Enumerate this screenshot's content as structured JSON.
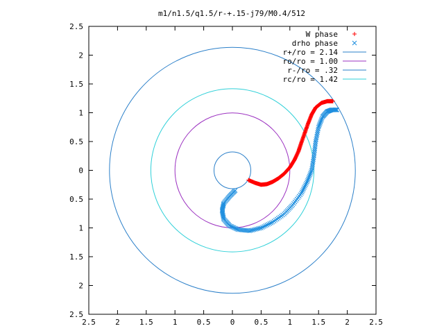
{
  "chart_data": {
    "type": "scatter",
    "title": "m1/n1.5/q1.5/r-+.15-j79/M0.4/512",
    "xlim": [
      -2.5,
      2.5
    ],
    "ylim": [
      -2.5,
      2.5
    ],
    "x_ticks": [
      -2.5,
      -2,
      -1.5,
      -1,
      -0.5,
      0,
      0.5,
      1,
      1.5,
      2,
      2.5
    ],
    "x_tick_labels": [
      "2.5",
      "2",
      "1.5",
      "1",
      "0.5",
      "0",
      "0.5",
      "1",
      "1.5",
      "2",
      "2.5"
    ],
    "y_ticks": [
      2.5,
      2,
      1.5,
      1,
      0.5,
      0,
      -0.5,
      -1,
      -1.5,
      -2,
      -2.5
    ],
    "y_tick_labels": [
      "2.5",
      "2",
      "1.5",
      "1",
      "0.5",
      "0",
      "0.5",
      "1",
      "1.5",
      "2",
      "2.5"
    ],
    "grid": false,
    "legend_position": "top-right",
    "series": [
      {
        "name": "W phase",
        "marker": "+",
        "color": "#ff0000",
        "points": [
          [
            0.28,
            -0.17
          ],
          [
            0.4,
            -0.22
          ],
          [
            0.5,
            -0.25
          ],
          [
            0.6,
            -0.24
          ],
          [
            0.7,
            -0.2
          ],
          [
            0.8,
            -0.14
          ],
          [
            0.9,
            -0.06
          ],
          [
            1.0,
            0.05
          ],
          [
            1.08,
            0.18
          ],
          [
            1.15,
            0.33
          ],
          [
            1.2,
            0.48
          ],
          [
            1.26,
            0.65
          ],
          [
            1.32,
            0.82
          ],
          [
            1.38,
            0.97
          ],
          [
            1.45,
            1.09
          ],
          [
            1.55,
            1.17
          ],
          [
            1.65,
            1.2
          ],
          [
            1.75,
            1.2
          ]
        ]
      },
      {
        "name": "drho phase",
        "marker": "x",
        "color": "#1f8fdf",
        "points": [
          [
            0.05,
            -0.35
          ],
          [
            -0.05,
            -0.45
          ],
          [
            -0.15,
            -0.57
          ],
          [
            -0.18,
            -0.7
          ],
          [
            -0.15,
            -0.85
          ],
          [
            -0.05,
            -0.96
          ],
          [
            0.1,
            -1.03
          ],
          [
            0.3,
            -1.05
          ],
          [
            0.5,
            -1.0
          ],
          [
            0.7,
            -0.9
          ],
          [
            0.9,
            -0.76
          ],
          [
            1.05,
            -0.6
          ],
          [
            1.2,
            -0.4
          ],
          [
            1.3,
            -0.2
          ],
          [
            1.38,
            0.0
          ],
          [
            1.42,
            0.25
          ],
          [
            1.45,
            0.5
          ],
          [
            1.5,
            0.75
          ],
          [
            1.57,
            0.93
          ],
          [
            1.65,
            1.02
          ],
          [
            1.73,
            1.05
          ],
          [
            1.82,
            1.05
          ]
        ]
      },
      {
        "name": "r+/ro = 2.14",
        "type": "circle",
        "radius": 2.14,
        "color": "#2a7fc9"
      },
      {
        "name": "ro/ro = 1.00",
        "type": "circle",
        "radius": 1.0,
        "color": "#9b30c0"
      },
      {
        "name": "r-/ro = .32",
        "type": "circle",
        "radius": 0.32,
        "color": "#2a7fc9"
      },
      {
        "name": "rc/ro = 1.42",
        "type": "circle",
        "radius": 1.42,
        "color": "#2ed0d8"
      }
    ]
  }
}
